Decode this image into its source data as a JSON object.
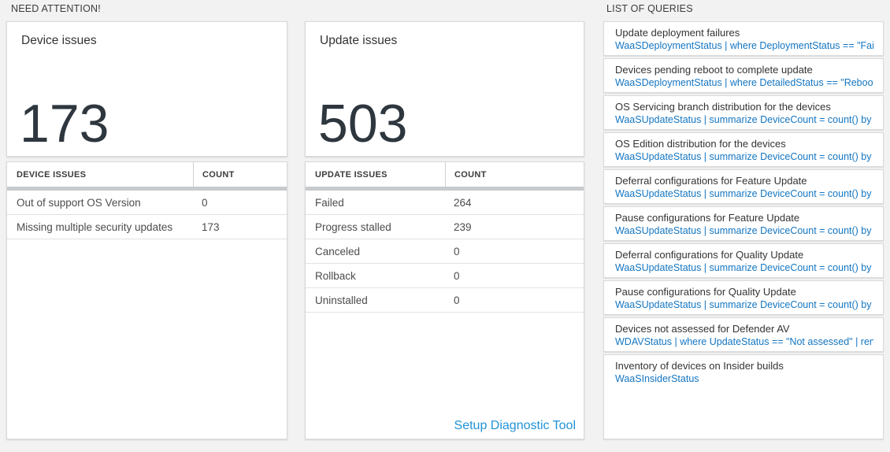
{
  "colors": {
    "page_background": "#f2f2f2",
    "card_border": "#d9d9d9",
    "thick_bar": "#c7cbce",
    "big_number": "#2e363e",
    "query_blue": "#1476c2",
    "link_blue": "#2093d5"
  },
  "sections": {
    "need_attention": {
      "title": "NEED ATTENTION!"
    },
    "queries": {
      "title": "LIST OF QUERIES"
    }
  },
  "device_card": {
    "title": "Device issues",
    "count": "173"
  },
  "update_card": {
    "title": "Update issues",
    "count": "503"
  },
  "device_table": {
    "headers": {
      "col1": "DEVICE ISSUES",
      "col2": "COUNT"
    },
    "rows": [
      {
        "label": "Out of support OS Version",
        "count": "0"
      },
      {
        "label": "Missing multiple security updates",
        "count": "173"
      }
    ]
  },
  "update_table": {
    "headers": {
      "col1": "UPDATE ISSUES",
      "col2": "COUNT"
    },
    "rows": [
      {
        "label": "Failed",
        "count": "264"
      },
      {
        "label": "Progress stalled",
        "count": "239"
      },
      {
        "label": "Canceled",
        "count": "0"
      },
      {
        "label": "Rollback",
        "count": "0"
      },
      {
        "label": "Uninstalled",
        "count": "0"
      }
    ],
    "link": "Setup Diagnostic Tool"
  },
  "query_list": {
    "items": [
      {
        "title": "Update deployment failures",
        "query": "WaaSDeploymentStatus | where DeploymentStatus == \"Failed\" |..."
      },
      {
        "title": "Devices pending reboot to complete update",
        "query": "WaaSDeploymentStatus | where DetailedStatus == \"Reboot pend..."
      },
      {
        "title": "OS Servicing branch distribution for the devices",
        "query": "WaaSUpdateStatus | summarize DeviceCount = count() by OSSer..."
      },
      {
        "title": "OS Edition distribution for the devices",
        "query": "WaaSUpdateStatus | summarize DeviceCount = count() by OSEdit..."
      },
      {
        "title": "Deferral configurations for Feature Update",
        "query": "WaaSUpdateStatus | summarize DeviceCount = count() by Featur..."
      },
      {
        "title": "Pause configurations for Feature Update",
        "query": "WaaSUpdateStatus | summarize DeviceCount = count() by Featur..."
      },
      {
        "title": "Deferral configurations for Quality Update",
        "query": "WaaSUpdateStatus | summarize DeviceCount = count() by Qualit..."
      },
      {
        "title": "Pause configurations for Quality Update",
        "query": "WaaSUpdateStatus | summarize DeviceCount = count() by Qualit..."
      },
      {
        "title": "Devices not assessed for Defender AV",
        "query": "WDAVStatus | where UpdateStatus == \"Not assessed\" | render ta..."
      },
      {
        "title": "Inventory of devices on Insider builds",
        "query": "WaaSInsiderStatus"
      }
    ]
  }
}
